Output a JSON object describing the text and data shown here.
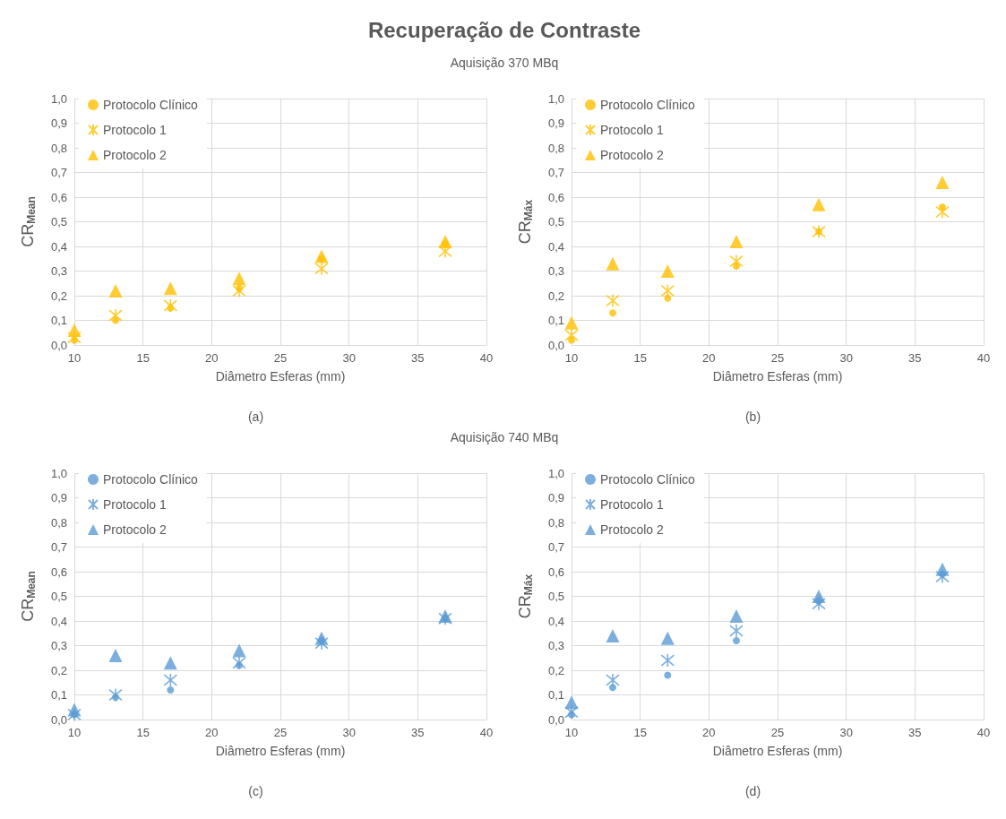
{
  "chart_data": [
    {
      "type": "scatter",
      "title": "Recuperação de Contraste",
      "subtitle": "Aquisição 370 MBq",
      "xlabel": "Diâmetro Esferas (mm)",
      "ylabel": "CR$_{Mean}$",
      "annotations": [
        "(a)"
      ],
      "x": [
        10,
        13,
        17,
        22,
        28,
        37
      ],
      "xlim": [
        10,
        40
      ],
      "xticks": [
        10,
        15,
        20,
        25,
        30,
        35,
        40
      ],
      "ylim": [
        0,
        1
      ],
      "yticks": [
        {
          "value": 0,
          "label": "0,0"
        },
        {
          "value": 0.1,
          "label": "0,1"
        },
        {
          "value": 0.2,
          "label": "0,2"
        },
        {
          "value": 0.3,
          "label": "0,3"
        },
        {
          "value": 0.4,
          "label": "0,4"
        },
        {
          "value": 0.5,
          "label": "0,5"
        },
        {
          "value": 0.6,
          "label": "0,6"
        },
        {
          "value": 0.7,
          "label": "0,7"
        },
        {
          "value": 0.8,
          "label": "0,8"
        },
        {
          "value": 0.9,
          "label": "0,9"
        },
        {
          "value": 1,
          "label": "1,0"
        }
      ],
      "grid": true,
      "legend": "top left",
      "series": [
        {
          "name": "Protocolo Clínico",
          "color": "#ffc000",
          "marker": "circle",
          "values": [
            0.02,
            0.1,
            0.15,
            0.23,
            0.35,
            0.41
          ]
        },
        {
          "name": "Protocolo 1",
          "color": "#ffc000",
          "marker": "cross",
          "values": [
            0.03,
            0.12,
            0.16,
            0.22,
            0.31,
            0.38
          ]
        },
        {
          "name": "Protocolo 2",
          "color": "#ffc000",
          "marker": "triangle",
          "values": [
            0.06,
            0.22,
            0.23,
            0.27,
            0.36,
            0.42
          ]
        }
      ]
    },
    {
      "type": "scatter",
      "xlabel": "Diâmetro Esferas (mm)",
      "ylabel": "CR$_{Máx}$",
      "annotations": [
        "(b)"
      ],
      "x": [
        10,
        13,
        17,
        22,
        28,
        37
      ],
      "xlim": [
        10,
        40
      ],
      "xticks": [
        10,
        15,
        20,
        25,
        30,
        35,
        40
      ],
      "ylim": [
        0,
        1
      ],
      "yticks": [
        {
          "value": 0,
          "label": "0,0"
        },
        {
          "value": 0.1,
          "label": "0,1"
        },
        {
          "value": 0.2,
          "label": "0,2"
        },
        {
          "value": 0.3,
          "label": "0,3"
        },
        {
          "value": 0.4,
          "label": "0,4"
        },
        {
          "value": 0.5,
          "label": "0,5"
        },
        {
          "value": 0.6,
          "label": "0,6"
        },
        {
          "value": 0.7,
          "label": "0,7"
        },
        {
          "value": 0.8,
          "label": "0,8"
        },
        {
          "value": 0.9,
          "label": "0,9"
        },
        {
          "value": 1,
          "label": "1,0"
        }
      ],
      "grid": true,
      "legend": "top left",
      "series": [
        {
          "name": "Protocolo Clínico",
          "color": "#ffc000",
          "marker": "circle",
          "values": [
            0.02,
            0.13,
            0.19,
            0.32,
            0.46,
            0.56
          ]
        },
        {
          "name": "Protocolo 1",
          "color": "#ffc000",
          "marker": "cross",
          "values": [
            0.04,
            0.18,
            0.22,
            0.34,
            0.46,
            0.54
          ]
        },
        {
          "name": "Protocolo 2",
          "color": "#ffc000",
          "marker": "triangle",
          "values": [
            0.09,
            0.33,
            0.3,
            0.42,
            0.57,
            0.66
          ]
        }
      ]
    },
    {
      "type": "scatter",
      "subtitle": "Aquisição 740 MBq",
      "xlabel": "Diâmetro Esferas (mm)",
      "ylabel": "CR$_{Mean}$",
      "annotations": [
        "(c)"
      ],
      "x": [
        10,
        13,
        17,
        22,
        28,
        37
      ],
      "xlim": [
        10,
        40
      ],
      "xticks": [
        10,
        15,
        20,
        25,
        30,
        35,
        40
      ],
      "ylim": [
        0,
        1
      ],
      "yticks": [
        {
          "value": 0,
          "label": "0,0"
        },
        {
          "value": 0.1,
          "label": "0,1"
        },
        {
          "value": 0.2,
          "label": "0,2"
        },
        {
          "value": 0.3,
          "label": "0,3"
        },
        {
          "value": 0.4,
          "label": "0,4"
        },
        {
          "value": 0.5,
          "label": "0,5"
        },
        {
          "value": 0.6,
          "label": "0,6"
        },
        {
          "value": 0.7,
          "label": "0,7"
        },
        {
          "value": 0.8,
          "label": "0,8"
        },
        {
          "value": 0.9,
          "label": "0,9"
        },
        {
          "value": 1,
          "label": "1,0"
        }
      ],
      "grid": true,
      "legend": "top left",
      "series": [
        {
          "name": "Protocolo Clínico",
          "color": "#5b9bd5",
          "marker": "circle",
          "values": [
            0.02,
            0.09,
            0.12,
            0.22,
            0.32,
            0.41
          ]
        },
        {
          "name": "Protocolo 1",
          "color": "#5b9bd5",
          "marker": "cross",
          "values": [
            0.02,
            0.1,
            0.16,
            0.23,
            0.31,
            0.41
          ]
        },
        {
          "name": "Protocolo 2",
          "color": "#5b9bd5",
          "marker": "triangle",
          "values": [
            0.04,
            0.26,
            0.23,
            0.28,
            0.33,
            0.42
          ]
        }
      ]
    },
    {
      "type": "scatter",
      "xlabel": "Diâmetro Esferas (mm)",
      "ylabel": "CR$_{Máx}$",
      "annotations": [
        "(d)"
      ],
      "x": [
        10,
        13,
        17,
        22,
        28,
        37
      ],
      "xlim": [
        10,
        40
      ],
      "xticks": [
        10,
        15,
        20,
        25,
        30,
        35,
        40
      ],
      "ylim": [
        0,
        1
      ],
      "yticks": [
        {
          "value": 0,
          "label": "0,0"
        },
        {
          "value": 0.1,
          "label": "0,1"
        },
        {
          "value": 0.2,
          "label": "0,2"
        },
        {
          "value": 0.3,
          "label": "0,3"
        },
        {
          "value": 0.4,
          "label": "0,4"
        },
        {
          "value": 0.5,
          "label": "0,5"
        },
        {
          "value": 0.6,
          "label": "0,6"
        },
        {
          "value": 0.7,
          "label": "0,7"
        },
        {
          "value": 0.8,
          "label": "0,8"
        },
        {
          "value": 0.9,
          "label": "0,9"
        },
        {
          "value": 1,
          "label": "1,0"
        }
      ],
      "grid": true,
      "legend": "top left",
      "series": [
        {
          "name": "Protocolo Clínico",
          "color": "#5b9bd5",
          "marker": "circle",
          "values": [
            0.02,
            0.13,
            0.18,
            0.32,
            0.48,
            0.59
          ]
        },
        {
          "name": "Protocolo 1",
          "color": "#5b9bd5",
          "marker": "cross",
          "values": [
            0.03,
            0.16,
            0.24,
            0.36,
            0.47,
            0.58
          ]
        },
        {
          "name": "Protocolo 2",
          "color": "#5b9bd5",
          "marker": "triangle",
          "values": [
            0.07,
            0.34,
            0.33,
            0.42,
            0.5,
            0.61
          ]
        }
      ]
    }
  ]
}
